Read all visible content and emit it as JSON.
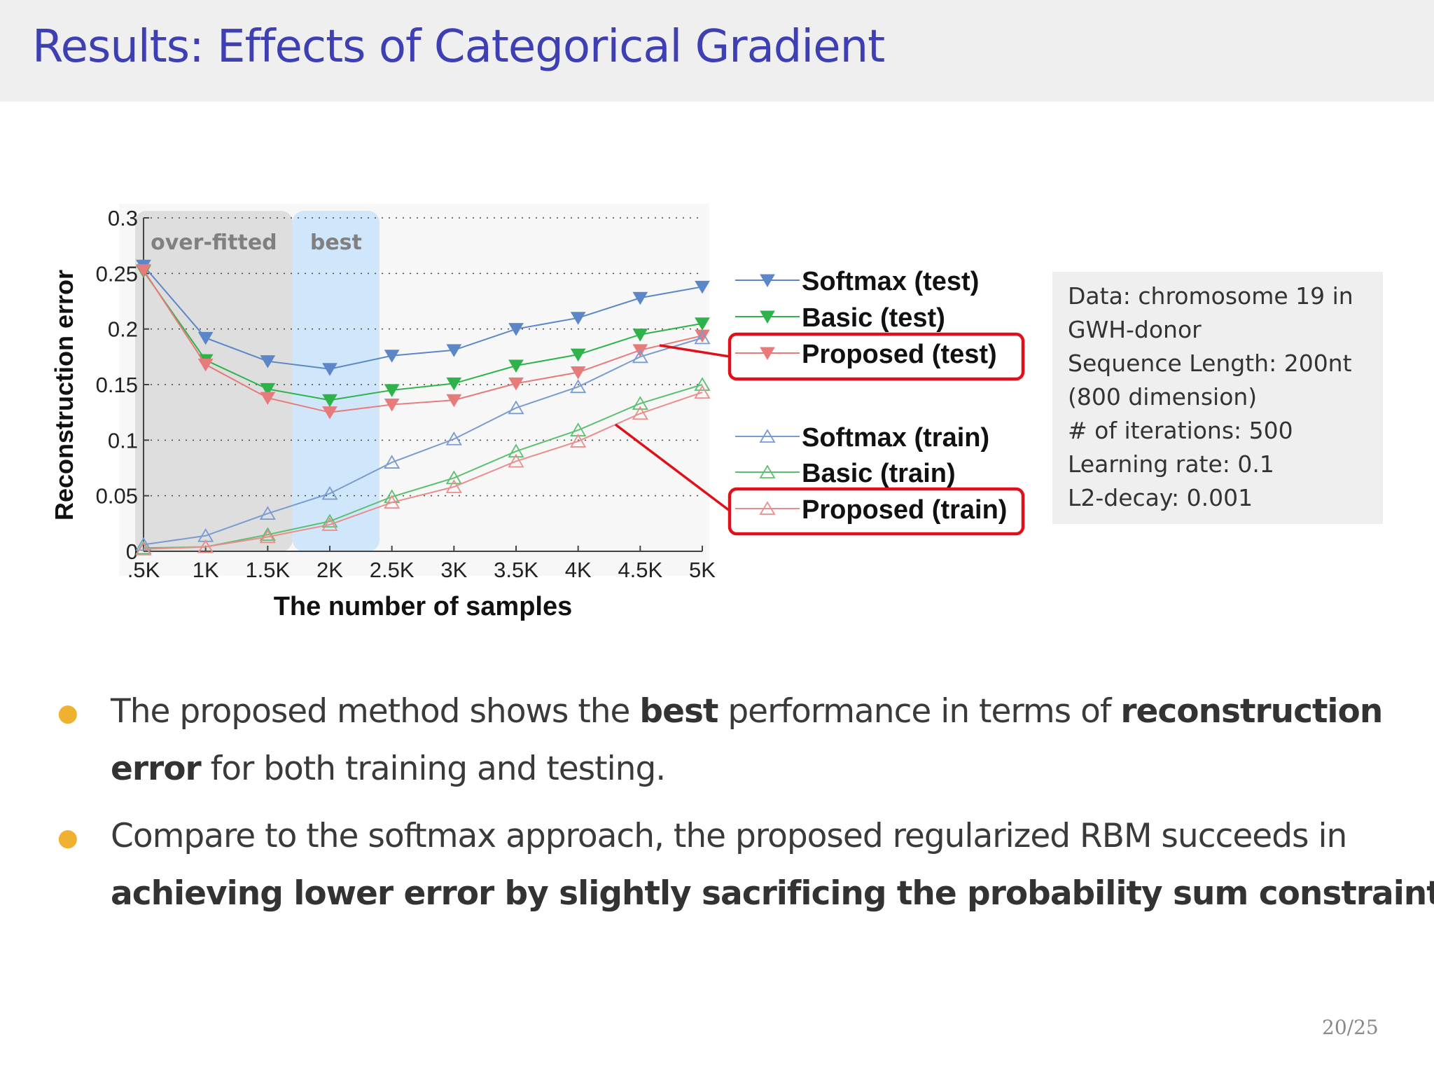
{
  "slide": {
    "title": "Results: Effects of Categorical Gradient",
    "page_number": "20/25"
  },
  "info_box": {
    "lines": [
      "Data: chromosome 19 in",
      "GWH-donor",
      "Sequence Length: 200nt",
      "(800 dimension)",
      "# of iterations: 500",
      "Learning rate: 0.1",
      "L2-decay: 0.001"
    ]
  },
  "bullets": [
    {
      "line1": [
        {
          "text": "The proposed method shows the ",
          "bold": false
        },
        {
          "text": "best",
          "bold": true
        },
        {
          "text": " performance in terms of ",
          "bold": false
        },
        {
          "text": "reconstruction",
          "bold": true
        }
      ],
      "line2": [
        {
          "text": "error",
          "bold": true
        },
        {
          "text": " for both training and testing.",
          "bold": false
        }
      ]
    },
    {
      "line1": [
        {
          "text": "Compare to the softmax approach, the proposed regularized RBM succeeds in",
          "bold": false
        }
      ],
      "line2": [
        {
          "text": "achieving lower error by slightly sacrificing the probability sum constraint",
          "bold": true
        },
        {
          "text": ".",
          "bold": false
        }
      ]
    }
  ],
  "chart_data": {
    "type": "line",
    "xlabel": "The number of samples",
    "ylabel": "Reconstruction error",
    "categories": [
      ".5K",
      "1K",
      "1.5K",
      "2K",
      "2.5K",
      "3K",
      "3.5K",
      "4K",
      "4.5K",
      "5K"
    ],
    "x": [
      0.5,
      1.0,
      1.5,
      2.0,
      2.5,
      3.0,
      3.5,
      4.0,
      4.5,
      5.0
    ],
    "yticks": [
      "0",
      "0.05",
      "0.1",
      "0.15",
      "0.2",
      "0.25",
      "0.3"
    ],
    "ylim": [
      0,
      0.3
    ],
    "grid": "horizontal dotted",
    "regions": [
      {
        "label": "over-fitted",
        "x_from": 0.5,
        "x_to": 1.7,
        "color": "#dcdcdc"
      },
      {
        "label": "best",
        "x_from": 1.7,
        "x_to": 2.4,
        "color": "#cde6fb"
      }
    ],
    "series": [
      {
        "name": "Softmax (test)",
        "marker": "down-filled",
        "color": "#5b87c8",
        "values": [
          0.257,
          0.192,
          0.171,
          0.164,
          0.176,
          0.181,
          0.2,
          0.21,
          0.228,
          0.238
        ]
      },
      {
        "name": "Basic (test)",
        "marker": "down-filled",
        "color": "#2db34a",
        "values": [
          0.252,
          0.172,
          0.146,
          0.136,
          0.145,
          0.151,
          0.167,
          0.177,
          0.195,
          0.205
        ]
      },
      {
        "name": "Proposed (test)",
        "marker": "down-filled",
        "color": "#e77a7a",
        "values": [
          0.253,
          0.168,
          0.138,
          0.125,
          0.132,
          0.136,
          0.151,
          0.161,
          0.181,
          0.194
        ]
      },
      {
        "name": "Softmax (train)",
        "marker": "up-open",
        "color": "#7a9bd0",
        "values": [
          0.006,
          0.014,
          0.034,
          0.052,
          0.08,
          0.101,
          0.129,
          0.148,
          0.175,
          0.192
        ]
      },
      {
        "name": "Basic (train)",
        "marker": "up-open",
        "color": "#5cc070",
        "values": [
          0.003,
          0.004,
          0.015,
          0.027,
          0.049,
          0.066,
          0.09,
          0.109,
          0.133,
          0.15
        ]
      },
      {
        "name": "Proposed (train)",
        "marker": "up-open",
        "color": "#ea8d8d",
        "values": [
          0.002,
          0.004,
          0.013,
          0.024,
          0.044,
          0.058,
          0.081,
          0.099,
          0.124,
          0.143
        ]
      }
    ],
    "highlighted": [
      "Proposed (test)",
      "Proposed (train)"
    ],
    "highlight_color": "#e0101a",
    "legend_position": "right"
  }
}
